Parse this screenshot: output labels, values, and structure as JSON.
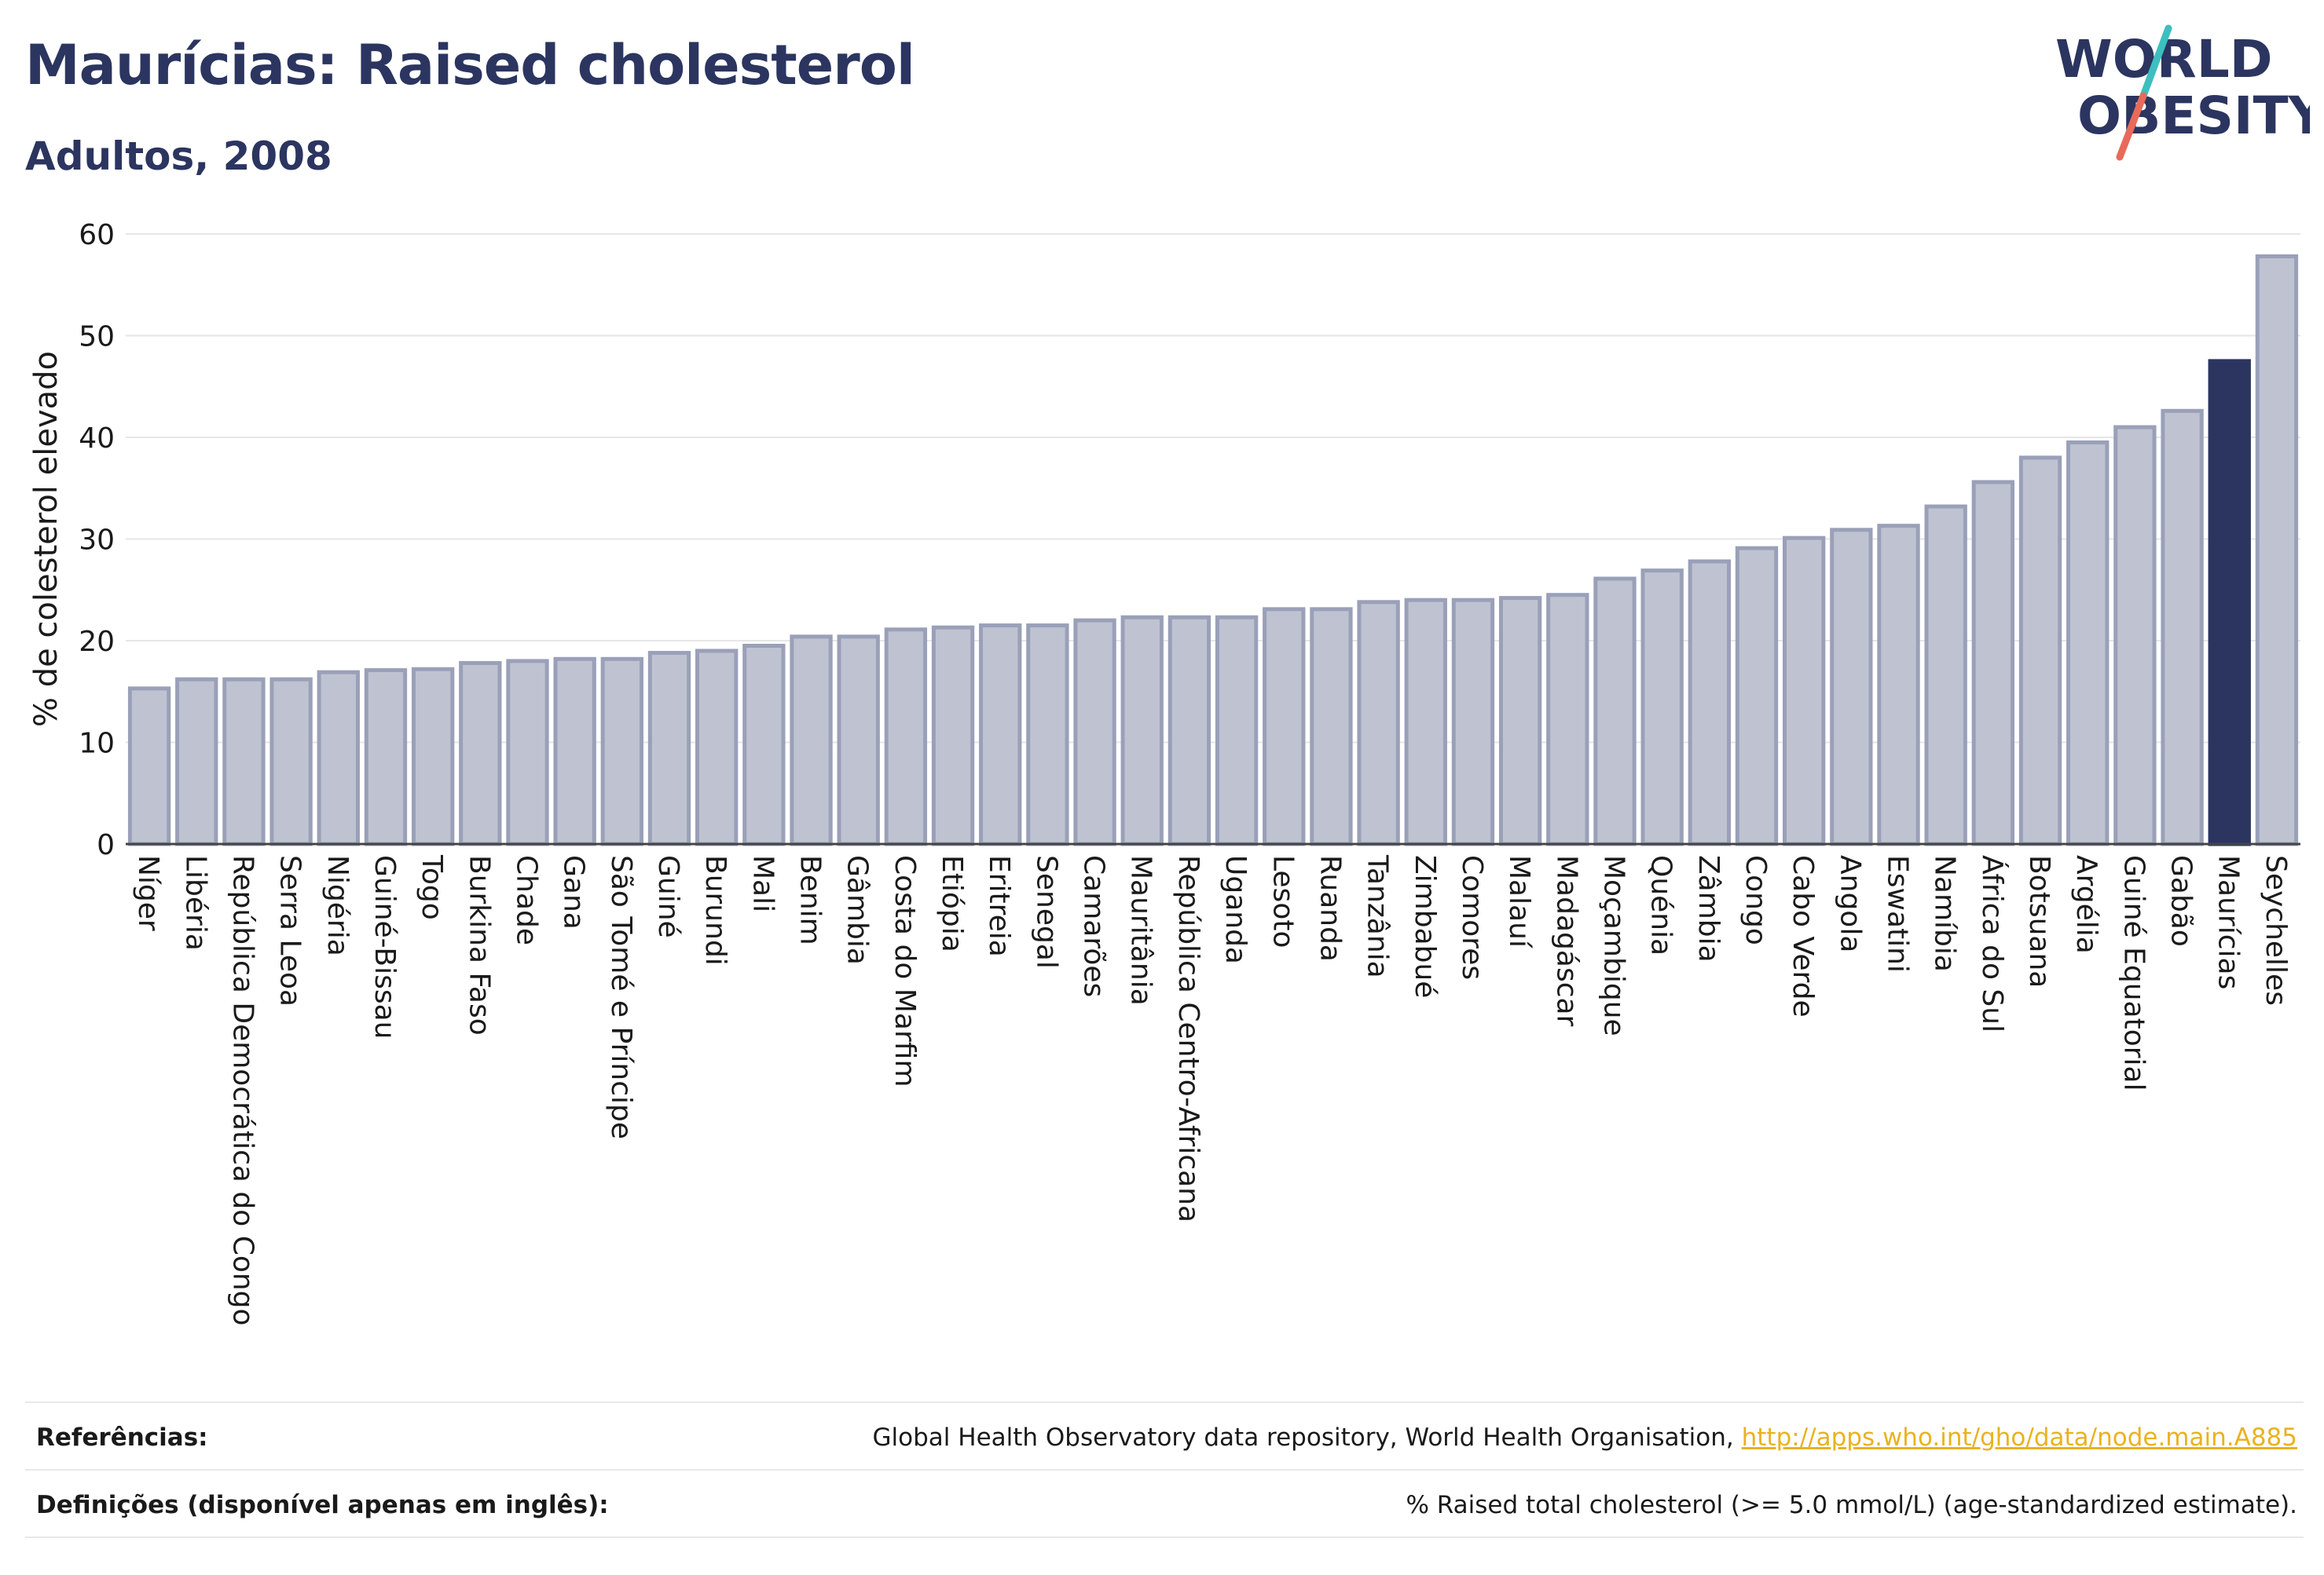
{
  "header": {
    "title": "Maurícias: Raised cholesterol",
    "subtitle": "Adultos, 2008"
  },
  "logo": {
    "line1": "WORLD",
    "line2": "OBESITY",
    "colors": {
      "text": "#2b3560",
      "slash_teal": "#3dbfbf",
      "slash_coral": "#e86a5a"
    }
  },
  "colors": {
    "bar_fill": "#bfc3d1",
    "bar_stroke": "#9aa0b8",
    "highlight": "#2b3560",
    "grid": "#e6e6e6"
  },
  "chart_data": {
    "type": "bar",
    "ylabel": "% de colesterol elevado",
    "ylim": [
      0,
      60
    ],
    "yticks": [
      0,
      10,
      20,
      30,
      40,
      50,
      60
    ],
    "grid": true,
    "highlight": "Maurícias",
    "categories": [
      "Níger",
      "Libéria",
      "República Democrática do Congo",
      "Serra Leoa",
      "Nigéria",
      "Guiné-Bissau",
      "Togo",
      "Burkina Faso",
      "Chade",
      "Gana",
      "São Tomé e Príncipe",
      "Guiné",
      "Burundi",
      "Mali",
      "Benim",
      "Gâmbia",
      "Costa do Marfim",
      "Etiópia",
      "Eritreia",
      "Senegal",
      "Camarões",
      "Mauritânia",
      "República Centro-Africana",
      "Uganda",
      "Lesoto",
      "Ruanda",
      "Tanzânia",
      "Zimbabué",
      "Comores",
      "Malauí",
      "Madagáscar",
      "Moçambique",
      "Quénia",
      "Zâmbia",
      "Congo",
      "Cabo Verde",
      "Angola",
      "Eswatini",
      "Namíbia",
      "África do Sul",
      "Botsuana",
      "Argélia",
      "Guiné Equatorial",
      "Gabão",
      "Maurícias",
      "Seychelles"
    ],
    "values": [
      15.3,
      16.2,
      16.2,
      16.2,
      16.9,
      17.1,
      17.2,
      17.8,
      18.0,
      18.2,
      18.2,
      18.8,
      19.0,
      19.5,
      20.4,
      20.4,
      21.1,
      21.3,
      21.5,
      21.5,
      22.0,
      22.3,
      22.3,
      22.3,
      23.1,
      23.1,
      23.8,
      24.0,
      24.0,
      24.2,
      24.5,
      26.1,
      26.9,
      27.8,
      29.1,
      30.1,
      30.9,
      31.3,
      33.2,
      35.6,
      38.0,
      39.5,
      41.0,
      42.6,
      47.5,
      57.8
    ]
  },
  "footer": {
    "references_label": "Referências:",
    "references_text": "Global Health Observatory data repository, World Health Organisation, ",
    "references_link": "http://apps.who.int/gho/data/node.main.A885",
    "definitions_label": "Definições (disponível apenas em inglês):",
    "definitions_text": "% Raised total cholesterol (>= 5.0 mmol/L) (age-standardized estimate)."
  }
}
